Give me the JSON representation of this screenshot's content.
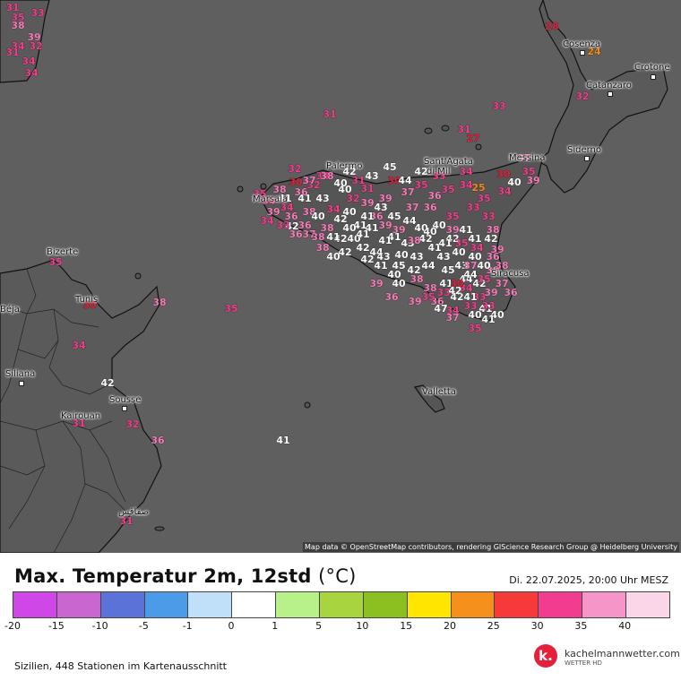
{
  "map": {
    "attribution": "Map data © OpenStreetMap contributors, rendering GIScience Research Group @ Heidelberg University",
    "cities": [
      {
        "name": "Palermo",
        "key": "palermo"
      },
      {
        "name": "Sant'Agata",
        "key": "santagata1"
      },
      {
        "name": "di Mil",
        "key": "santagata2"
      },
      {
        "name": "Messina",
        "key": "messina"
      },
      {
        "name": "Cosenza",
        "key": "cosenza"
      },
      {
        "name": "Crotone",
        "key": "crotone"
      },
      {
        "name": "Catanzaro",
        "key": "catanzaro"
      },
      {
        "name": "Siderno",
        "key": "siderno"
      },
      {
        "name": "Bizerte",
        "key": "bizerte"
      },
      {
        "name": "Tunis",
        "key": "tunis"
      },
      {
        "name": "Béja",
        "key": "beja"
      },
      {
        "name": "Siliana",
        "key": "siliana"
      },
      {
        "name": "Sousse",
        "key": "sousse"
      },
      {
        "name": "Kairouan",
        "key": "kairouan"
      },
      {
        "name": "Valletta",
        "key": "valletta"
      },
      {
        "name": "صفاقس",
        "key": "sfax"
      },
      {
        "name": "Marsala",
        "key": "marsala"
      },
      {
        "name": "Siracusa",
        "key": "siracusa"
      }
    ],
    "stations": [
      {
        "v": "28",
        "color": "#e0203a"
      },
      {
        "v": "24",
        "color": "#f08a1a"
      },
      {
        "v": "32",
        "color": "#f03d8c"
      },
      {
        "v": "33",
        "color": "#f03d8c"
      },
      {
        "v": "31",
        "color": "#f03d8c"
      },
      {
        "v": "27",
        "color": "#e0203a"
      },
      {
        "v": "31",
        "color": "#f03d8c"
      },
      {
        "v": "32",
        "color": "#f03d8c"
      },
      {
        "v": "37",
        "color": "#f27bb5"
      },
      {
        "v": "39",
        "color": "#f27bb5"
      },
      {
        "v": "40",
        "color": "#ffffff"
      },
      {
        "v": "34",
        "color": "#f03d8c"
      },
      {
        "v": "34",
        "color": "#f03d8c"
      },
      {
        "v": "35",
        "color": "#f03d8c"
      },
      {
        "v": "30",
        "color": "#e0203a"
      },
      {
        "v": "38",
        "color": "#f27bb5"
      },
      {
        "v": "35",
        "color": "#f03d8c"
      },
      {
        "v": "42",
        "color": "#ffffff"
      },
      {
        "v": "34",
        "color": "#f03d8c"
      },
      {
        "v": "32",
        "color": "#f03d8c"
      },
      {
        "v": "31",
        "color": "#f03d8c"
      },
      {
        "v": "36",
        "color": "#f27bb5"
      },
      {
        "v": "41",
        "color": "#ffffff"
      },
      {
        "v": "37",
        "color": "#f27bb5"
      },
      {
        "v": "36",
        "color": "#f27bb5"
      },
      {
        "v": "35",
        "color": "#f03d8c"
      },
      {
        "v": "33",
        "color": "#f03d8c"
      },
      {
        "v": "38",
        "color": "#f27bb5"
      },
      {
        "v": "39",
        "color": "#f27bb5"
      },
      {
        "v": "34",
        "color": "#f03d8c"
      },
      {
        "v": "32",
        "color": "#f03d8c"
      },
      {
        "v": "31",
        "color": "#f03d8c"
      },
      {
        "v": "30",
        "color": "#e0203a"
      },
      {
        "v": "35",
        "color": "#f03d8c"
      },
      {
        "v": "33",
        "color": "#f03d8c"
      },
      {
        "v": "41",
        "color": "#ffffff"
      },
      {
        "v": "40",
        "color": "#ffffff"
      },
      {
        "v": "42",
        "color": "#ffffff"
      },
      {
        "v": "44",
        "color": "#ffffff"
      },
      {
        "v": "45",
        "color": "#ffffff"
      },
      {
        "v": "43",
        "color": "#ffffff"
      },
      {
        "v": "41",
        "color": "#ffffff"
      },
      {
        "v": "42",
        "color": "#ffffff"
      },
      {
        "v": "40",
        "color": "#ffffff"
      },
      {
        "v": "39",
        "color": "#f27bb5"
      },
      {
        "v": "37",
        "color": "#f27bb5"
      },
      {
        "v": "33",
        "color": "#f03d8c"
      },
      {
        "v": "38",
        "color": "#f27bb5"
      },
      {
        "v": "40",
        "color": "#ffffff"
      },
      {
        "v": "45",
        "color": "#ffffff"
      },
      {
        "v": "44",
        "color": "#ffffff"
      },
      {
        "v": "42",
        "color": "#ffffff"
      },
      {
        "v": "40",
        "color": "#ffffff"
      },
      {
        "v": "43",
        "color": "#ffffff"
      },
      {
        "v": "41",
        "color": "#ffffff"
      },
      {
        "v": "39",
        "color": "#f27bb5"
      },
      {
        "v": "42",
        "color": "#ffffff"
      },
      {
        "v": "38",
        "color": "#f27bb5"
      },
      {
        "v": "36",
        "color": "#f27bb5"
      },
      {
        "v": "41",
        "color": "#ffffff"
      },
      {
        "v": "43",
        "color": "#ffffff"
      },
      {
        "v": "40",
        "color": "#ffffff"
      },
      {
        "v": "41",
        "color": "#ffffff"
      },
      {
        "v": "39",
        "color": "#f27bb5"
      },
      {
        "v": "37",
        "color": "#f27bb5"
      },
      {
        "v": "36",
        "color": "#f27bb5"
      },
      {
        "v": "35",
        "color": "#f03d8c"
      },
      {
        "v": "34",
        "color": "#f03d8c"
      },
      {
        "v": "33",
        "color": "#f03d8c"
      },
      {
        "v": "42",
        "color": "#ffffff"
      },
      {
        "v": "41",
        "color": "#ffffff"
      },
      {
        "v": "40",
        "color": "#ffffff"
      },
      {
        "v": "43",
        "color": "#ffffff"
      },
      {
        "v": "44",
        "color": "#ffffff"
      },
      {
        "v": "42",
        "color": "#ffffff"
      },
      {
        "v": "40",
        "color": "#ffffff"
      },
      {
        "v": "39",
        "color": "#f27bb5"
      },
      {
        "v": "41",
        "color": "#ffffff"
      },
      {
        "v": "38",
        "color": "#f27bb5"
      },
      {
        "v": "40",
        "color": "#ffffff"
      },
      {
        "v": "37",
        "color": "#f27bb5"
      },
      {
        "v": "34",
        "color": "#f03d8c"
      },
      {
        "v": "36",
        "color": "#f27bb5"
      },
      {
        "v": "40",
        "color": "#ffffff"
      },
      {
        "v": "42",
        "color": "#ffffff"
      },
      {
        "v": "41",
        "color": "#ffffff"
      },
      {
        "v": "40",
        "color": "#ffffff"
      },
      {
        "v": "38",
        "color": "#f27bb5"
      },
      {
        "v": "36",
        "color": "#f27bb5"
      },
      {
        "v": "34",
        "color": "#f03d8c"
      },
      {
        "v": "33",
        "color": "#f03d8c"
      },
      {
        "v": "41",
        "color": "#ffffff"
      },
      {
        "v": "40",
        "color": "#ffffff"
      },
      {
        "v": "39",
        "color": "#f27bb5"
      },
      {
        "v": "42",
        "color": "#ffffff"
      },
      {
        "v": "43",
        "color": "#ffffff"
      },
      {
        "v": "41",
        "color": "#ffffff"
      },
      {
        "v": "37",
        "color": "#f27bb5"
      },
      {
        "v": "35",
        "color": "#f03d8c"
      },
      {
        "v": "41",
        "color": "#ffffff"
      },
      {
        "v": "39",
        "color": "#f27bb5"
      },
      {
        "v": "40",
        "color": "#ffffff"
      },
      {
        "v": "42",
        "color": "#ffffff"
      },
      {
        "v": "44",
        "color": "#ffffff"
      },
      {
        "v": "45",
        "color": "#ffffff"
      },
      {
        "v": "43",
        "color": "#ffffff"
      },
      {
        "v": "41",
        "color": "#ffffff"
      },
      {
        "v": "42",
        "color": "#ffffff"
      },
      {
        "v": "40",
        "color": "#ffffff"
      },
      {
        "v": "38",
        "color": "#f27bb5"
      },
      {
        "v": "39",
        "color": "#f27bb5"
      },
      {
        "v": "36",
        "color": "#f27bb5"
      },
      {
        "v": "34",
        "color": "#f03d8c"
      },
      {
        "v": "30",
        "color": "#e0203a"
      },
      {
        "v": "33",
        "color": "#f03d8c"
      },
      {
        "v": "35",
        "color": "#f03d8c"
      },
      {
        "v": "39",
        "color": "#f27bb5"
      },
      {
        "v": "40",
        "color": "#ffffff"
      },
      {
        "v": "41",
        "color": "#ffffff"
      },
      {
        "v": "42",
        "color": "#ffffff"
      },
      {
        "v": "44",
        "color": "#ffffff"
      },
      {
        "v": "45",
        "color": "#ffffff"
      },
      {
        "v": "43",
        "color": "#ffffff"
      },
      {
        "v": "42",
        "color": "#ffffff"
      },
      {
        "v": "40",
        "color": "#ffffff"
      },
      {
        "v": "38",
        "color": "#f27bb5"
      },
      {
        "v": "37",
        "color": "#f27bb5"
      },
      {
        "v": "36",
        "color": "#f27bb5"
      },
      {
        "v": "41",
        "color": "#ffffff"
      },
      {
        "v": "39",
        "color": "#f27bb5"
      },
      {
        "v": "34",
        "color": "#f03d8c"
      },
      {
        "v": "33",
        "color": "#f03d8c"
      },
      {
        "v": "34",
        "color": "#f03d8c"
      },
      {
        "v": "36",
        "color": "#f27bb5"
      },
      {
        "v": "38",
        "color": "#f27bb5"
      },
      {
        "v": "41",
        "color": "#ffffff"
      },
      {
        "v": "40",
        "color": "#ffffff"
      },
      {
        "v": "42",
        "color": "#ffffff"
      },
      {
        "v": "43",
        "color": "#ffffff"
      },
      {
        "v": "39",
        "color": "#f27bb5"
      },
      {
        "v": "38",
        "color": "#f27bb5"
      },
      {
        "v": "40",
        "color": "#ffffff"
      },
      {
        "v": "41",
        "color": "#ffffff"
      },
      {
        "v": "35",
        "color": "#f03d8c"
      },
      {
        "v": "34",
        "color": "#f03d8c"
      },
      {
        "v": "36",
        "color": "#f27bb5"
      },
      {
        "v": "38",
        "color": "#f27bb5"
      },
      {
        "v": "40",
        "color": "#ffffff"
      },
      {
        "v": "44",
        "color": "#ffffff"
      },
      {
        "v": "42",
        "color": "#ffffff"
      },
      {
        "v": "47",
        "color": "#ffffff"
      },
      {
        "v": "37",
        "color": "#f27bb5"
      },
      {
        "v": "41",
        "color": "#ffffff"
      },
      {
        "v": "35",
        "color": "#f03d8c"
      },
      {
        "v": "33",
        "color": "#f03d8c"
      },
      {
        "v": "36",
        "color": "#f27bb5"
      },
      {
        "v": "35",
        "color": "#f03d8c"
      },
      {
        "v": "30",
        "color": "#e0203a"
      },
      {
        "v": "25",
        "color": "#f08a1a"
      },
      {
        "v": "31",
        "color": "#f03d8c"
      },
      {
        "v": "35",
        "color": "#f03d8c"
      },
      {
        "v": "33",
        "color": "#f03d8c"
      },
      {
        "v": "38",
        "color": "#f27bb5"
      },
      {
        "v": "39",
        "color": "#f27bb5"
      },
      {
        "v": "34",
        "color": "#f03d8c"
      },
      {
        "v": "32",
        "color": "#f03d8c"
      },
      {
        "v": "31",
        "color": "#f03d8c"
      },
      {
        "v": "34",
        "color": "#f03d8c"
      },
      {
        "v": "34",
        "color": "#f03d8c"
      },
      {
        "v": "35",
        "color": "#f03d8c"
      },
      {
        "v": "30",
        "color": "#e0203a"
      },
      {
        "v": "38",
        "color": "#f27bb5"
      },
      {
        "v": "35",
        "color": "#f03d8c"
      },
      {
        "v": "34",
        "color": "#f03d8c"
      },
      {
        "v": "42",
        "color": "#ffffff"
      },
      {
        "v": "32",
        "color": "#f03d8c"
      },
      {
        "v": "31",
        "color": "#f03d8c"
      },
      {
        "v": "36",
        "color": "#f27bb5"
      },
      {
        "v": "41",
        "color": "#ffffff"
      },
      {
        "v": "31",
        "color": "#f03d8c"
      }
    ]
  },
  "legend": {
    "title": "Max. Temperatur 2m, 12std",
    "unit": "(°C)",
    "datetime": "Di. 22.07.2025, 20:00 Uhr MESZ",
    "colors": [
      "#d047e8",
      "#c966d0",
      "#5b72d8",
      "#4b9be8",
      "#bfe0f8",
      "#ffffff",
      "#b8f08a",
      "#a8d440",
      "#8cc020",
      "#ffe600",
      "#f5901c",
      "#f63a3a",
      "#f23c8f",
      "#f595c8",
      "#fbd6e8"
    ],
    "ticks": [
      "-20",
      "-15",
      "-10",
      "-5",
      "-1",
      "0",
      "1",
      "5",
      "10",
      "15",
      "20",
      "25",
      "30",
      "35",
      "40"
    ]
  },
  "footer": {
    "region": "Sizilien, 448 Stationen im Kartenausschnitt"
  },
  "brand": {
    "logo": "k.",
    "name": "kachelmannwetter.com",
    "sub": "WETTER HD"
  }
}
